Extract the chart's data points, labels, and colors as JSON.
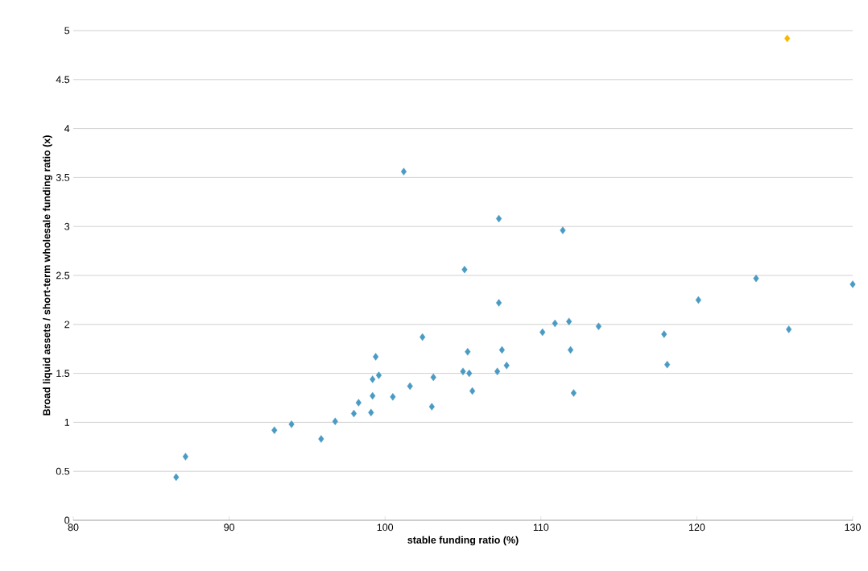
{
  "chart_data": {
    "type": "scatter",
    "xlabel": "stable funding ratio (%)",
    "ylabel": "Broad liquid assets / short-term wholesale funding ratio (x)",
    "xlim": [
      80,
      130
    ],
    "xticks": [
      80,
      90,
      100,
      110,
      120,
      130
    ],
    "ylim": [
      0,
      5
    ],
    "yticks": [
      0,
      0.5,
      1,
      1.5,
      2,
      2.5,
      3,
      3.5,
      4,
      4.5,
      5
    ],
    "grid": "y",
    "marker": "diamond",
    "series": [
      {
        "color": "#4a9bc4",
        "x": [
          86.6,
          87.2,
          92.9,
          94.0,
          95.9,
          96.8,
          98.0,
          98.3,
          99.1,
          99.2,
          99.2,
          99.4,
          99.6,
          100.5,
          101.2,
          101.6,
          102.4,
          103.0,
          103.1,
          105.1,
          105.0,
          105.3,
          105.4,
          105.6,
          107.3,
          107.3,
          107.2,
          107.5,
          107.8,
          110.1,
          110.9,
          111.4,
          111.8,
          111.9,
          112.1,
          113.7,
          117.9,
          118.1,
          120.1,
          123.8,
          125.9,
          130.0
        ],
        "values": [
          0.44,
          0.65,
          0.92,
          0.98,
          0.83,
          1.01,
          1.09,
          1.2,
          1.1,
          1.27,
          1.44,
          1.67,
          1.48,
          1.26,
          3.56,
          1.37,
          1.87,
          1.16,
          1.46,
          2.56,
          1.52,
          1.72,
          1.5,
          1.32,
          3.08,
          2.22,
          1.52,
          1.74,
          1.58,
          1.92,
          2.01,
          2.96,
          2.03,
          1.74,
          1.3,
          1.98,
          1.9,
          1.59,
          2.25,
          2.47,
          1.95,
          2.41
        ]
      },
      {
        "color": "#f5b800",
        "x": [
          125.8
        ],
        "values": [
          4.92
        ]
      }
    ]
  }
}
